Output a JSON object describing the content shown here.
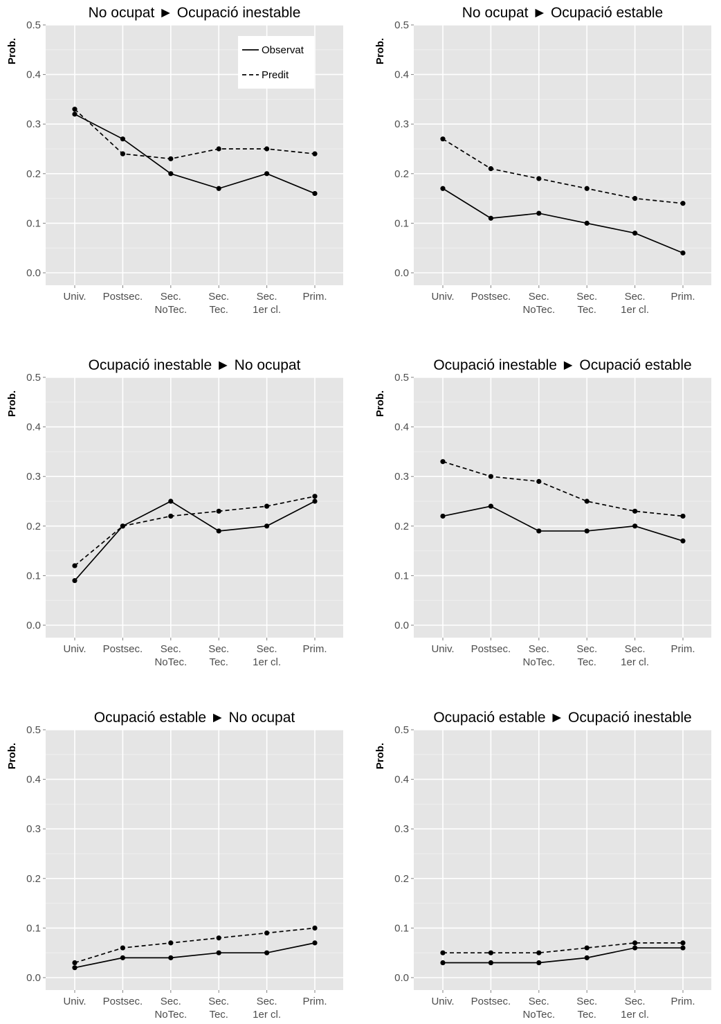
{
  "chart_data": [
    {
      "type": "line",
      "title": "No ocupat ► Ocupació inestable",
      "ylabel": "Prob.",
      "xlabel": "",
      "ylim": [
        0,
        0.5
      ],
      "yticks": [
        "0.0",
        "0.1",
        "0.2",
        "0.3",
        "0.4",
        "0.5"
      ],
      "categories": [
        [
          "Univ."
        ],
        [
          "Postsec."
        ],
        [
          "Sec.",
          "NoTec."
        ],
        [
          "Sec.",
          "Tec."
        ],
        [
          "Sec.",
          "1er cl."
        ],
        [
          "Prim."
        ]
      ],
      "series": [
        {
          "name": "Observat",
          "style": "solid",
          "values": [
            0.32,
            0.27,
            0.2,
            0.17,
            0.2,
            0.16
          ]
        },
        {
          "name": "Predit",
          "style": "dashed",
          "values": [
            0.33,
            0.24,
            0.23,
            0.25,
            0.25,
            0.24
          ]
        }
      ],
      "legend": {
        "position": "top-right",
        "entries": [
          "Observat",
          "Predit"
        ]
      },
      "grid": true
    },
    {
      "type": "line",
      "title": "No ocupat ► Ocupació estable",
      "ylabel": "Prob.",
      "xlabel": "",
      "ylim": [
        0,
        0.5
      ],
      "yticks": [
        "0.0",
        "0.1",
        "0.2",
        "0.3",
        "0.4",
        "0.5"
      ],
      "categories": [
        [
          "Univ."
        ],
        [
          "Postsec."
        ],
        [
          "Sec.",
          "NoTec."
        ],
        [
          "Sec.",
          "Tec."
        ],
        [
          "Sec.",
          "1er cl."
        ],
        [
          "Prim."
        ]
      ],
      "series": [
        {
          "name": "Observat",
          "style": "solid",
          "values": [
            0.17,
            0.11,
            0.12,
            0.1,
            0.08,
            0.04
          ]
        },
        {
          "name": "Predit",
          "style": "dashed",
          "values": [
            0.27,
            0.21,
            0.19,
            0.17,
            0.15,
            0.14
          ]
        }
      ],
      "grid": true
    },
    {
      "type": "line",
      "title": "Ocupació inestable ► No ocupat",
      "ylabel": "Prob.",
      "xlabel": "",
      "ylim": [
        0,
        0.5
      ],
      "yticks": [
        "0.0",
        "0.1",
        "0.2",
        "0.3",
        "0.4",
        "0.5"
      ],
      "categories": [
        [
          "Univ."
        ],
        [
          "Postsec."
        ],
        [
          "Sec.",
          "NoTec."
        ],
        [
          "Sec.",
          "Tec."
        ],
        [
          "Sec.",
          "1er cl."
        ],
        [
          "Prim."
        ]
      ],
      "series": [
        {
          "name": "Observat",
          "style": "solid",
          "values": [
            0.09,
            0.2,
            0.25,
            0.19,
            0.2,
            0.25
          ]
        },
        {
          "name": "Predit",
          "style": "dashed",
          "values": [
            0.12,
            0.2,
            0.22,
            0.23,
            0.24,
            0.26
          ]
        }
      ],
      "grid": true
    },
    {
      "type": "line",
      "title": "Ocupació inestable ► Ocupació estable",
      "ylabel": "Prob.",
      "xlabel": "",
      "ylim": [
        0,
        0.5
      ],
      "yticks": [
        "0.0",
        "0.1",
        "0.2",
        "0.3",
        "0.4",
        "0.5"
      ],
      "categories": [
        [
          "Univ."
        ],
        [
          "Postsec."
        ],
        [
          "Sec.",
          "NoTec."
        ],
        [
          "Sec.",
          "Tec."
        ],
        [
          "Sec.",
          "1er cl."
        ],
        [
          "Prim."
        ]
      ],
      "series": [
        {
          "name": "Observat",
          "style": "solid",
          "values": [
            0.22,
            0.24,
            0.19,
            0.19,
            0.2,
            0.17
          ]
        },
        {
          "name": "Predit",
          "style": "dashed",
          "values": [
            0.33,
            0.3,
            0.29,
            0.25,
            0.23,
            0.22
          ]
        }
      ],
      "grid": true
    },
    {
      "type": "line",
      "title": "Ocupació estable ► No ocupat",
      "ylabel": "Prob.",
      "xlabel": "",
      "ylim": [
        0,
        0.5
      ],
      "yticks": [
        "0.0",
        "0.1",
        "0.2",
        "0.3",
        "0.4",
        "0.5"
      ],
      "categories": [
        [
          "Univ."
        ],
        [
          "Postsec."
        ],
        [
          "Sec.",
          "NoTec."
        ],
        [
          "Sec.",
          "Tec."
        ],
        [
          "Sec.",
          "1er cl."
        ],
        [
          "Prim."
        ]
      ],
      "series": [
        {
          "name": "Observat",
          "style": "solid",
          "values": [
            0.02,
            0.04,
            0.04,
            0.05,
            0.05,
            0.07
          ]
        },
        {
          "name": "Predit",
          "style": "dashed",
          "values": [
            0.03,
            0.06,
            0.07,
            0.08,
            0.09,
            0.1
          ]
        }
      ],
      "grid": true
    },
    {
      "type": "line",
      "title": "Ocupació estable ► Ocupació inestable",
      "ylabel": "Prob.",
      "xlabel": "",
      "ylim": [
        0,
        0.5
      ],
      "yticks": [
        "0.0",
        "0.1",
        "0.2",
        "0.3",
        "0.4",
        "0.5"
      ],
      "categories": [
        [
          "Univ."
        ],
        [
          "Postsec."
        ],
        [
          "Sec.",
          "NoTec."
        ],
        [
          "Sec.",
          "Tec."
        ],
        [
          "Sec.",
          "1er cl."
        ],
        [
          "Prim."
        ]
      ],
      "series": [
        {
          "name": "Observat",
          "style": "solid",
          "values": [
            0.03,
            0.03,
            0.03,
            0.04,
            0.06,
            0.06
          ]
        },
        {
          "name": "Predit",
          "style": "dashed",
          "values": [
            0.05,
            0.05,
            0.05,
            0.06,
            0.07,
            0.07
          ]
        }
      ],
      "grid": true
    }
  ],
  "colors": {
    "panel_background": "#e5e5e5",
    "grid_major": "#ffffff",
    "grid_minor": "#f2f2f2",
    "line": "#000000",
    "tick_text": "#4d4d4d"
  }
}
